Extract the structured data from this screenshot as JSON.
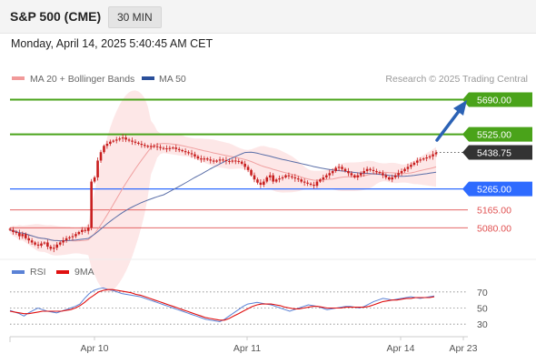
{
  "header": {
    "title": "S&P 500 (CME)",
    "interval": "30 MIN",
    "datetime": "Monday, April 14, 2025 5:40:45 AM CET"
  },
  "legend": {
    "ma20_bb": "MA 20 + Bollinger Bands",
    "ma50": "MA 50",
    "source": "Research © 2025 Trading Central"
  },
  "rsi_legend": {
    "rsi": "RSI",
    "ma9": "9MA"
  },
  "colors": {
    "candle": "#c81e1e",
    "resistance": "#4aa31a",
    "current": "#333333",
    "pivot": "#2e6bff",
    "support": "#e05050",
    "ma20": "#f0a0a0",
    "bollinger_fill": "#fde3e3",
    "ma50": "#5b6fa8",
    "arrow": "#2b62b5",
    "rsi": "#5a82d6",
    "rsi_ma": "#e01010"
  },
  "chart_data": [
    {
      "type": "candlestick",
      "title": "S&P 500 (CME)",
      "interval": "30 MIN",
      "ylim": [
        4960,
        5740
      ],
      "x_ticks": [
        "Apr 10",
        "Apr 11",
        "Apr 14",
        "Apr 23"
      ],
      "levels": [
        {
          "label": "5690.00",
          "value": 5690,
          "role": "resistance"
        },
        {
          "label": "5525.00",
          "value": 5525,
          "role": "resistance"
        },
        {
          "label": "5438.75",
          "value": 5438.75,
          "role": "current"
        },
        {
          "label": "5265.00",
          "value": 5265,
          "role": "pivot"
        },
        {
          "label": "5165.00",
          "value": 5165,
          "role": "support"
        },
        {
          "label": "5080.00",
          "value": 5080,
          "role": "support"
        }
      ],
      "close": [
        5070,
        5060,
        5055,
        5040,
        5050,
        5030,
        5020,
        5010,
        5000,
        4995,
        5005,
        5010,
        4990,
        4980,
        4985,
        5000,
        5010,
        5020,
        5030,
        5035,
        5040,
        5050,
        5060,
        5070,
        5065,
        5080,
        5300,
        5320,
        5400,
        5440,
        5470,
        5480,
        5490,
        5495,
        5500,
        5505,
        5510,
        5500,
        5495,
        5490,
        5485,
        5480,
        5475,
        5470,
        5465,
        5470,
        5468,
        5465,
        5460,
        5458,
        5455,
        5460,
        5462,
        5455,
        5450,
        5445,
        5440,
        5435,
        5430,
        5420,
        5410,
        5405,
        5410,
        5405,
        5400,
        5395,
        5400,
        5405,
        5402,
        5398,
        5395,
        5400,
        5398,
        5395,
        5385,
        5370,
        5355,
        5330,
        5310,
        5295,
        5285,
        5300,
        5320,
        5330,
        5300,
        5310,
        5315,
        5320,
        5330,
        5325,
        5320,
        5315,
        5310,
        5300,
        5295,
        5290,
        5285,
        5280,
        5300,
        5310,
        5320,
        5330,
        5340,
        5350,
        5365,
        5370,
        5360,
        5350,
        5340,
        5330,
        5320,
        5330,
        5340,
        5350,
        5360,
        5355,
        5350,
        5345,
        5340,
        5330,
        5320,
        5310,
        5320,
        5330,
        5340,
        5350,
        5360,
        5370,
        5380,
        5390,
        5400,
        5405,
        5410,
        5415,
        5420,
        5430,
        5438
      ],
      "rsi": {
        "ylim": [
          20,
          80
        ],
        "ticks": [
          70,
          50,
          30
        ],
        "rsi": [
          47,
          45,
          43,
          40,
          44,
          47,
          50,
          48,
          46,
          45,
          44,
          46,
          48,
          50,
          52,
          55,
          62,
          68,
          72,
          74,
          75,
          73,
          72,
          70,
          68,
          67,
          66,
          65,
          64,
          62,
          60,
          58,
          56,
          54,
          52,
          50,
          48,
          46,
          44,
          42,
          40,
          38,
          36,
          35,
          34,
          33,
          36,
          40,
          44,
          48,
          52,
          55,
          56,
          57,
          56,
          55,
          54,
          52,
          50,
          48,
          46,
          48,
          50,
          52,
          54,
          53,
          52,
          50,
          48,
          49,
          50,
          51,
          52,
          52,
          51,
          50,
          52,
          55,
          58,
          60,
          62,
          61,
          60,
          61,
          62,
          63,
          64,
          63,
          62,
          63,
          64,
          65
        ],
        "ma9": [
          46,
          45,
          44,
          43,
          43,
          44,
          45,
          46,
          46,
          46,
          46,
          46,
          47,
          48,
          50,
          53,
          57,
          62,
          66,
          70,
          72,
          73,
          73,
          72,
          71,
          70,
          69,
          67,
          66,
          64,
          62,
          60,
          58,
          56,
          54,
          52,
          50,
          48,
          46,
          44,
          42,
          40,
          38,
          37,
          36,
          35,
          35,
          37,
          40,
          43,
          46,
          49,
          52,
          54,
          55,
          55,
          55,
          54,
          53,
          51,
          50,
          49,
          49,
          50,
          51,
          52,
          52,
          51,
          50,
          50,
          50,
          50,
          51,
          51,
          51,
          51,
          51,
          52,
          54,
          56,
          58,
          59,
          60,
          60,
          61,
          62,
          62,
          63,
          63,
          63,
          63,
          64
        ]
      }
    }
  ]
}
